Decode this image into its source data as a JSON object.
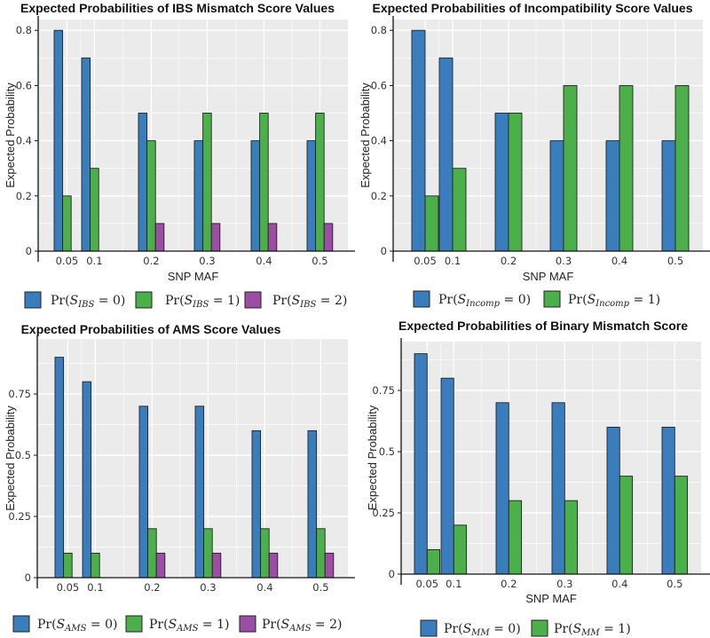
{
  "chart_data": [
    {
      "type": "bar",
      "title": "Expected Probabilities of IBS Mismatch Score Values",
      "xlabel": "SNP MAF",
      "ylabel": "Expected Probability",
      "categories": [
        "0.05",
        "0.1",
        "0.2",
        "0.3",
        "0.4",
        "0.5"
      ],
      "yticks": [
        "0",
        "0.2",
        "0.4",
        "0.6",
        "0.8"
      ],
      "ylim": [
        0,
        0.8
      ],
      "legend_position": "bottom",
      "series": [
        {
          "name": "Pr(S_IBS = 0)",
          "color": "#3a7dbd",
          "values": [
            0.8,
            0.7,
            0.5,
            0.4,
            0.4,
            0.4
          ]
        },
        {
          "name": "Pr(S_IBS = 1)",
          "color": "#4cb04a",
          "values": [
            0.2,
            0.3,
            0.4,
            0.5,
            0.5,
            0.5
          ]
        },
        {
          "name": "Pr(S_IBS = 2)",
          "color": "#9b4ea3",
          "values": [
            0,
            0,
            0.1,
            0.1,
            0.1,
            0.1
          ]
        }
      ]
    },
    {
      "type": "bar",
      "title": "Expected Probabilities of Incompatibility Score Values",
      "xlabel": "SNP MAF",
      "ylabel": "Expected Probability",
      "categories": [
        "0.05",
        "0.1",
        "0.2",
        "0.3",
        "0.4",
        "0.5"
      ],
      "yticks": [
        "0",
        "0.2",
        "0.4",
        "0.6",
        "0.8"
      ],
      "ylim": [
        0,
        0.8
      ],
      "legend_position": "bottom",
      "series": [
        {
          "name": "Pr(S_Incomp = 0)",
          "color": "#3a7dbd",
          "values": [
            0.8,
            0.7,
            0.5,
            0.4,
            0.4,
            0.4
          ]
        },
        {
          "name": "Pr(S_Incomp = 1)",
          "color": "#4cb04a",
          "values": [
            0.2,
            0.3,
            0.5,
            0.6,
            0.6,
            0.6
          ]
        }
      ]
    },
    {
      "type": "bar",
      "title": "Expected Probabilities of AMS Score Values",
      "xlabel": "",
      "ylabel": "Expected Probability",
      "categories": [
        "0.05",
        "0.1",
        "0.2",
        "0.3",
        "0.4",
        "0.5"
      ],
      "yticks": [
        "0",
        "0.25",
        "0.5",
        "0.75"
      ],
      "ylim": [
        0,
        0.9
      ],
      "legend_position": "bottom",
      "series": [
        {
          "name": "Pr(S_AMS = 0)",
          "color": "#3a7dbd",
          "values": [
            0.9,
            0.8,
            0.7,
            0.7,
            0.6,
            0.6
          ]
        },
        {
          "name": "Pr(S_AMS = 1)",
          "color": "#4cb04a",
          "values": [
            0.1,
            0.1,
            0.2,
            0.2,
            0.2,
            0.2
          ]
        },
        {
          "name": "Pr(S_AMS = 2)",
          "color": "#9b4ea3",
          "values": [
            0,
            0,
            0.1,
            0.1,
            0.1,
            0.1
          ]
        }
      ]
    },
    {
      "type": "bar",
      "title": "Expected Probabilities of Binary Mismatch Score",
      "xlabel": "SNP MAF",
      "ylabel": "Expected Probability",
      "categories": [
        "0.05",
        "0.1",
        "0.2",
        "0.3",
        "0.4",
        "0.5"
      ],
      "yticks": [
        "0",
        "0.25",
        "0.5",
        "0.75"
      ],
      "ylim": [
        0,
        0.9
      ],
      "legend_position": "bottom",
      "series": [
        {
          "name": "Pr(S_MM = 0)",
          "color": "#3a7dbd",
          "values": [
            0.9,
            0.8,
            0.7,
            0.7,
            0.6,
            0.6
          ]
        },
        {
          "name": "Pr(S_MM = 1)",
          "color": "#4cb04a",
          "values": [
            0.1,
            0.2,
            0.3,
            0.3,
            0.4,
            0.4
          ]
        }
      ]
    }
  ]
}
